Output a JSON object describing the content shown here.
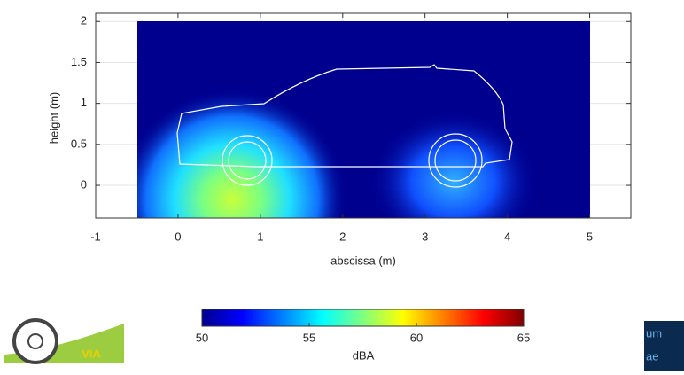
{
  "chart_data": {
    "type": "heatmap",
    "xlabel": "abscissa (m)",
    "ylabel": "height (m)",
    "xlim": [
      -1,
      5.5
    ],
    "xticks": [
      -1,
      0,
      1,
      2,
      3,
      4,
      5
    ],
    "ylim": [
      -0.4,
      2.1
    ],
    "yticks": [
      0,
      0.5,
      1,
      1.5,
      2
    ],
    "grid": true,
    "colorbar": {
      "label": "dBA",
      "lim": [
        50,
        65
      ],
      "ticks": [
        50,
        55,
        60,
        65
      ],
      "colormap": "jet"
    }
  },
  "logos": {
    "left": "VIA",
    "right_top": "um",
    "right_bottom": "ae"
  }
}
